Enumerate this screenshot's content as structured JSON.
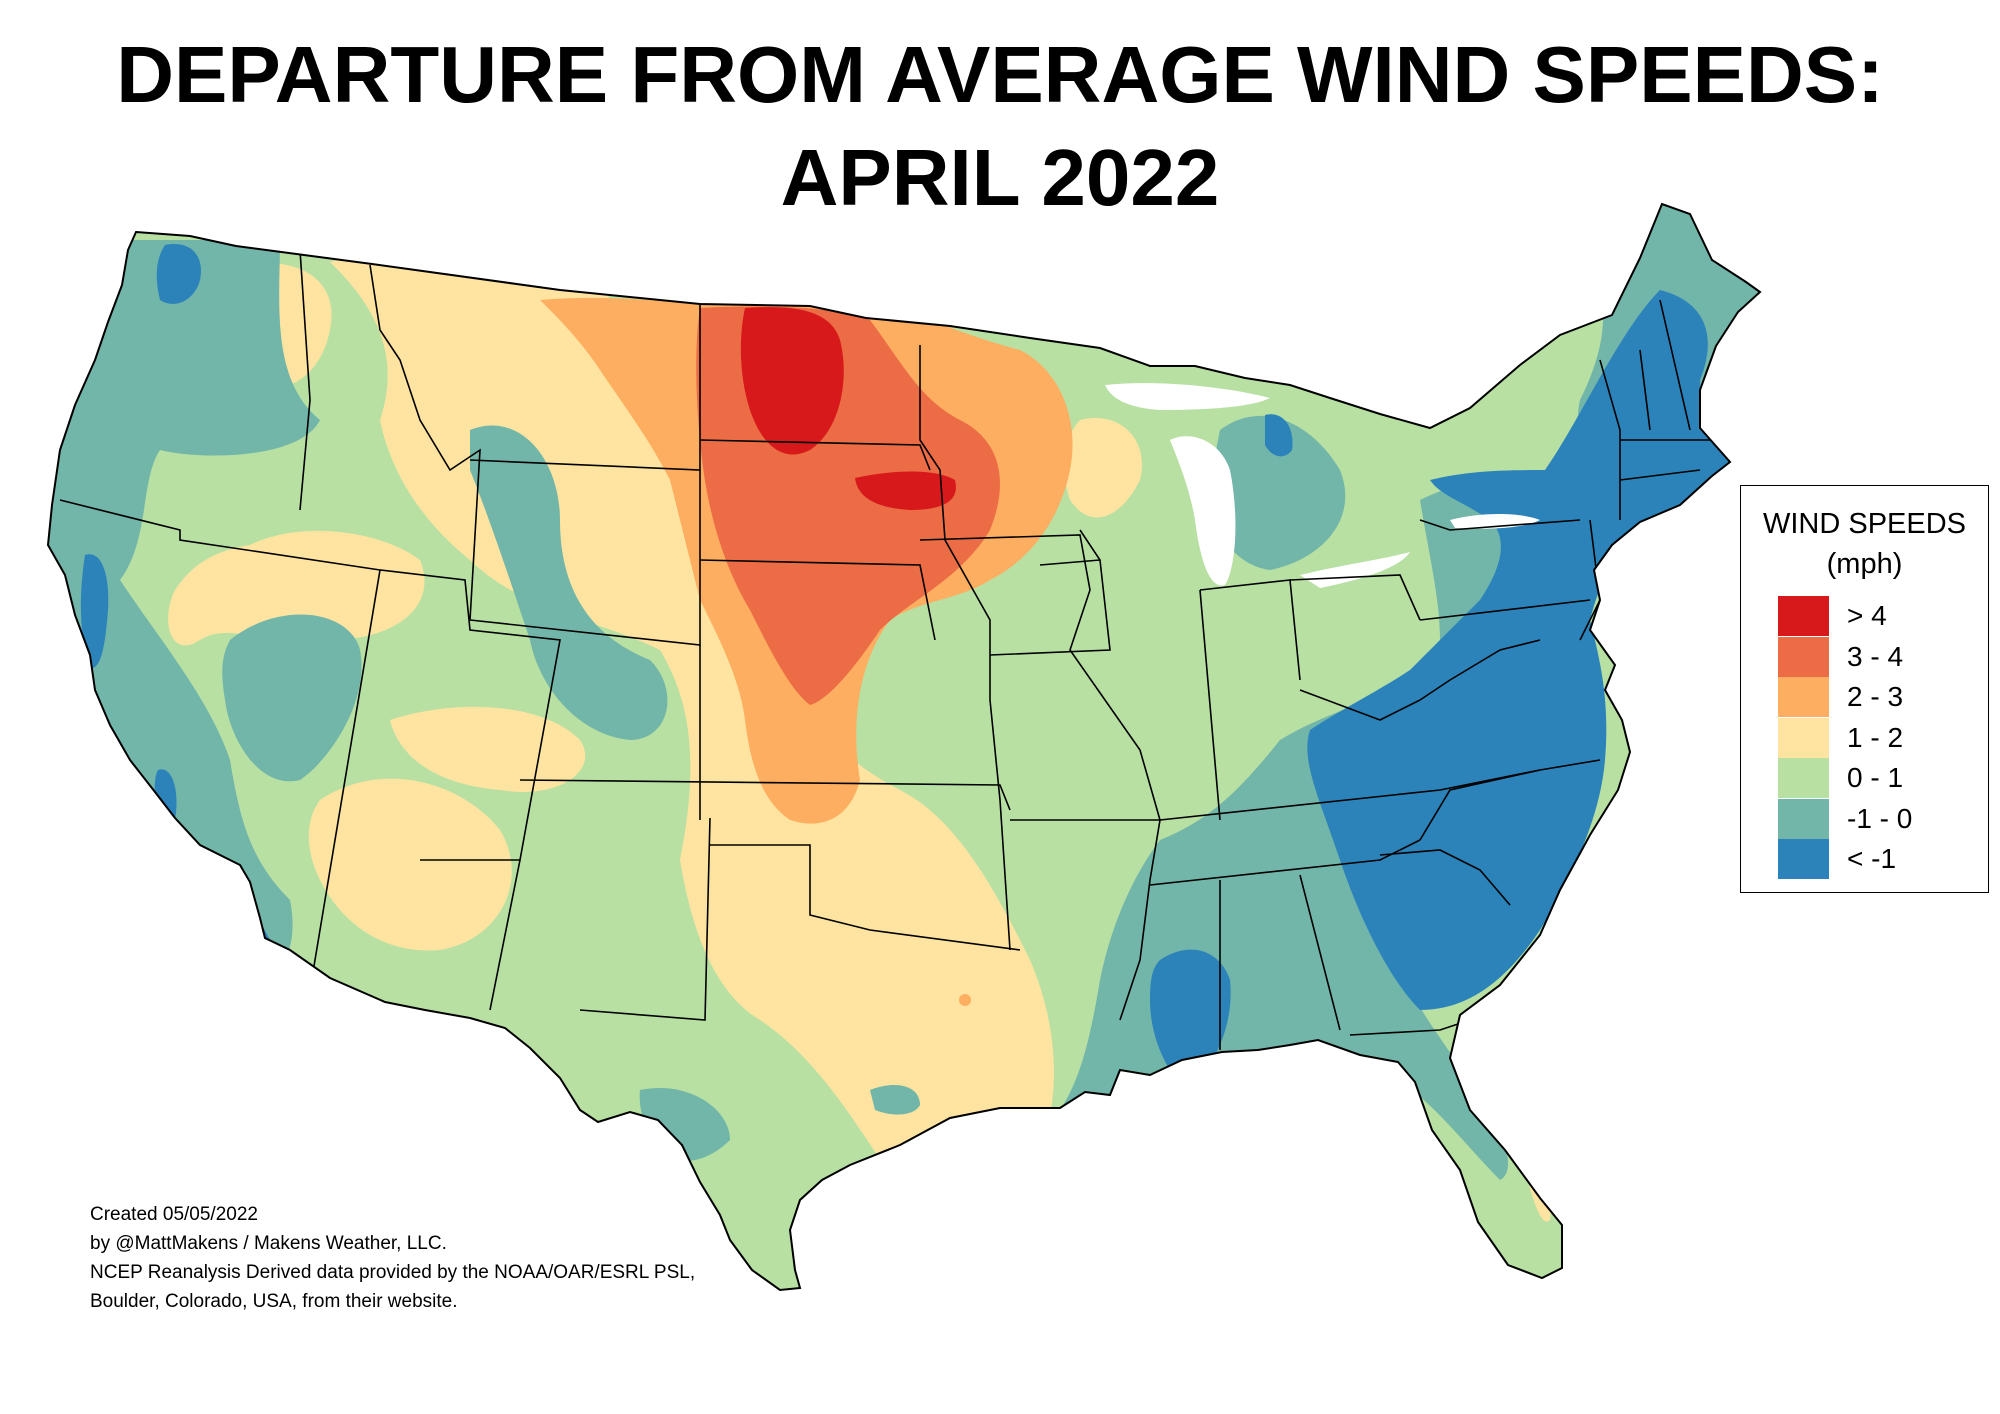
{
  "title": {
    "line1": "DEPARTURE FROM AVERAGE WIND SPEEDS:",
    "line2": "APRIL 2022"
  },
  "legend": {
    "title_line1": "WIND SPEEDS",
    "title_line2": "(mph)",
    "items": [
      {
        "label": "> 4",
        "color": "#d7191c"
      },
      {
        "label": "3 - 4",
        "color": "#ec6c45"
      },
      {
        "label": "2 - 3",
        "color": "#fdae61"
      },
      {
        "label": "1 - 2",
        "color": "#fee4a0"
      },
      {
        "label": "0 - 1",
        "color": "#b8e0a3"
      },
      {
        "label": "-1 - 0",
        "color": "#72b5a9"
      },
      {
        "label": "< -1",
        "color": "#2b83ba"
      }
    ]
  },
  "credits": {
    "line1": "Created 05/05/2022",
    "line2": "by @MattMakens / Makens Weather, LLC.",
    "line3": "NCEP Reanalysis Derived data provided by the NOAA/OAR/ESRL PSL,",
    "line4": "Boulder, Colorado, USA, from their website."
  }
}
